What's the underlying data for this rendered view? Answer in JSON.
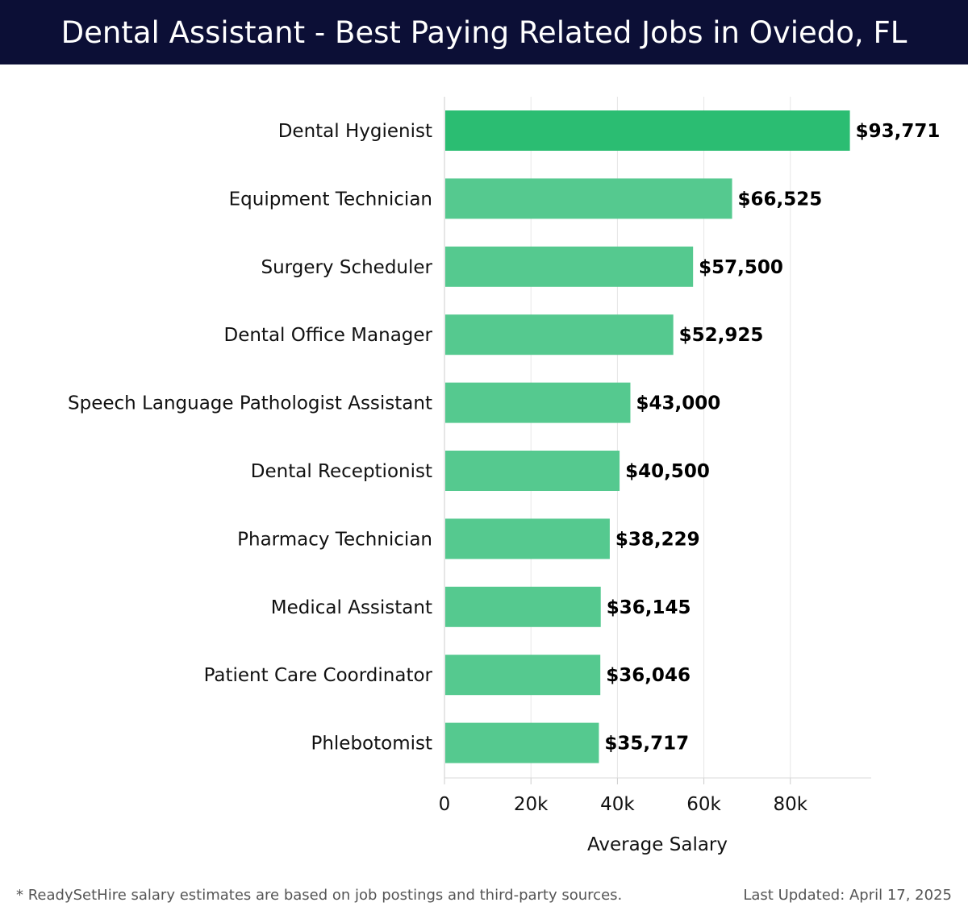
{
  "title": "Dental Assistant - Best Paying Related Jobs in Oviedo, FL",
  "footnote": "* ReadySetHire salary estimates are based on job postings and third-party sources.",
  "last_updated": "Last Updated: April 17, 2025",
  "colors": {
    "header_bg": "#0c0f36",
    "top_bar": "#2bbd72",
    "bar": "#55c98f",
    "grid": "#e6e6e6"
  },
  "chart_data": {
    "type": "bar",
    "orientation": "horizontal",
    "categories": [
      "Dental Hygienist",
      "Equipment Technician",
      "Surgery Scheduler",
      "Dental Office Manager",
      "Speech Language Pathologist Assistant",
      "Dental Receptionist",
      "Pharmacy Technician",
      "Medical Assistant",
      "Patient Care Coordinator",
      "Phlebotomist"
    ],
    "values": [
      93771,
      66525,
      57500,
      52925,
      43000,
      40500,
      38229,
      36145,
      36046,
      35717
    ],
    "value_labels": [
      "$93,771",
      "$66,525",
      "$57,500",
      "$52,925",
      "$43,000",
      "$40,500",
      "$38,229",
      "$36,145",
      "$36,046",
      "$35,717"
    ],
    "xlabel": "Average Salary",
    "ylabel": "",
    "xlim": [
      0,
      98700
    ],
    "xticks": [
      0,
      20000,
      40000,
      60000,
      80000
    ],
    "xtick_labels": [
      "0",
      "20k",
      "40k",
      "60k",
      "80k"
    ],
    "grid": true
  }
}
